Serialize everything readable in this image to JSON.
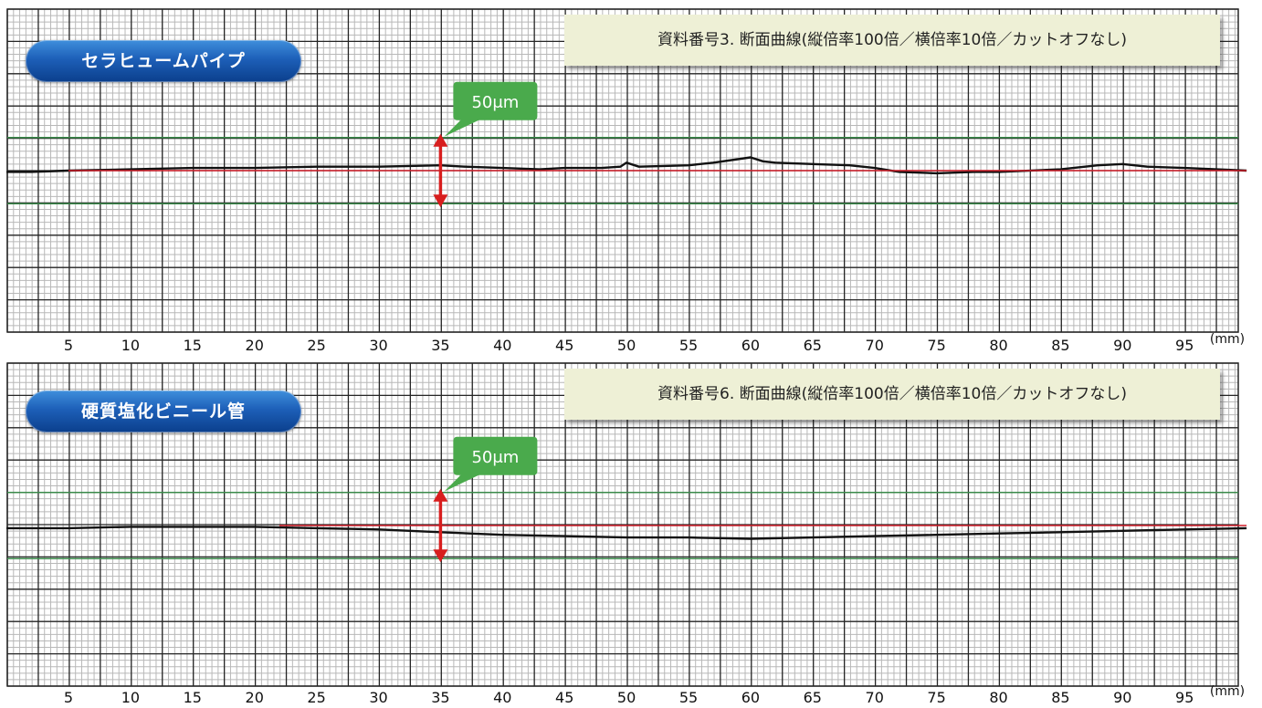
{
  "colors": {
    "profile": "#111111",
    "reference": "#d21f2a",
    "band": "#3a8a4a",
    "arrow": "#d81e1e",
    "callout": "#4aaa4c",
    "grid_minor": "#b8b8b8",
    "grid_major": "#262626"
  },
  "chart_data": [
    {
      "type": "line",
      "label": "セラヒュームパイプ",
      "title": "資料番号3.  断面曲線(縦倍率100倍／横倍率10倍／カットオフなし)",
      "xlabel": "(mm)",
      "scale_label": "50μm",
      "x_ticks": [
        5,
        10,
        15,
        20,
        25,
        30,
        35,
        40,
        45,
        50,
        55,
        60,
        65,
        70,
        75,
        80,
        85,
        90,
        95
      ],
      "band_um": [
        -25,
        25
      ],
      "scale_arrow_x": 35,
      "series": [
        {
          "x": [
            0,
            2,
            5,
            10,
            15,
            20,
            25,
            30,
            35,
            37,
            40,
            43,
            45,
            48,
            49.5,
            50,
            51,
            55,
            57,
            60,
            61,
            62,
            65,
            68,
            70,
            72,
            75,
            78,
            80,
            85,
            88,
            90,
            92,
            95,
            100
          ],
          "y": [
            -1,
            -1,
            0,
            1,
            2,
            2,
            3,
            3,
            4,
            3,
            2,
            1,
            2,
            2,
            3,
            6,
            3,
            4,
            6,
            10,
            7,
            6,
            5,
            4,
            2,
            -1,
            -2,
            -1,
            -1,
            1,
            4,
            5,
            3,
            2,
            0
          ]
        },
        {
          "x": [
            5,
            100
          ],
          "y": [
            0,
            0
          ]
        }
      ]
    },
    {
      "type": "line",
      "label": "硬質塩化ビニール管",
      "title": "資料番号6.  断面曲線(縦倍率100倍／横倍率10倍／カットオフなし)",
      "xlabel": "(mm)",
      "scale_label": "50μm",
      "x_ticks": [
        5,
        10,
        15,
        20,
        25,
        30,
        35,
        40,
        45,
        50,
        55,
        60,
        65,
        70,
        75,
        80,
        85,
        90,
        95
      ],
      "band_um": [
        -25,
        25
      ],
      "scale_arrow_x": 35,
      "series": [
        {
          "x": [
            0,
            5,
            10,
            15,
            20,
            25,
            30,
            35,
            40,
            45,
            50,
            55,
            60,
            65,
            70,
            75,
            80,
            85,
            90,
            95,
            100
          ],
          "y": [
            -2,
            -2,
            -1,
            -1,
            -1,
            -2,
            -3,
            -5,
            -7,
            -8,
            -9,
            -9,
            -10,
            -9,
            -8,
            -7,
            -6,
            -5,
            -4,
            -3,
            -2
          ]
        },
        {
          "x": [
            22,
            100
          ],
          "y": [
            0,
            0
          ]
        }
      ]
    }
  ]
}
